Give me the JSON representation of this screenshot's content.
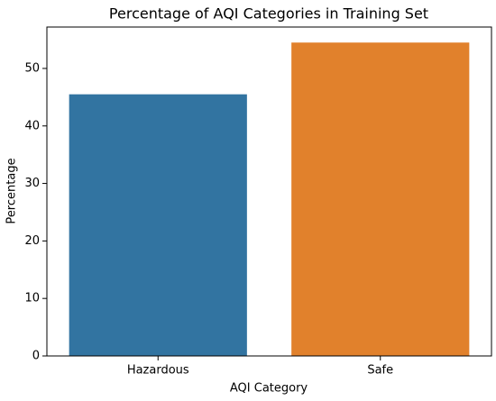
{
  "chart_data": {
    "type": "bar",
    "title": "Percentage of AQI Categories in Training Set",
    "x_label": "AQI Category",
    "y_label": "Percentage",
    "categories": [
      "Hazardous",
      "Safe"
    ],
    "values": [
      45.5,
      54.5
    ],
    "colors": [
      "#3274a1",
      "#e1812c"
    ],
    "ylim": [
      0,
      57.2
    ],
    "yticks": [
      0,
      10,
      20,
      30,
      40,
      50
    ],
    "grid": false
  }
}
